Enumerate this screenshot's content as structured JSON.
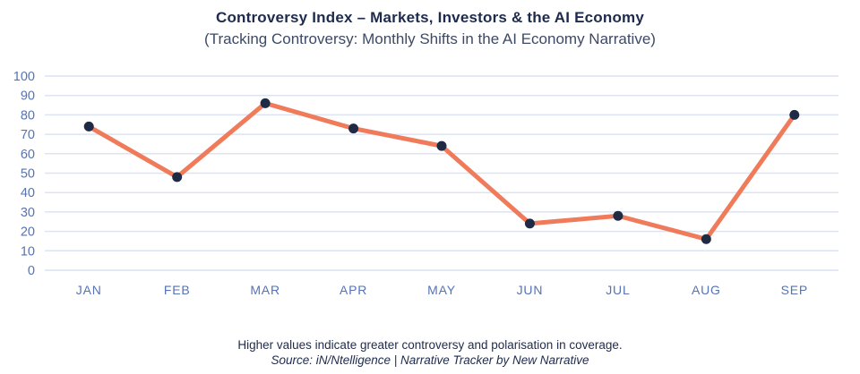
{
  "header": {
    "title": "Controversy Index – Markets, Investors & the AI Economy",
    "subtitle": "(Tracking Controversy: Monthly Shifts in the AI Economy Narrative)"
  },
  "footer": {
    "note": "Higher values indicate greater controversy and polarisation in coverage.",
    "source": "Source: iN/Ntelligence | Narrative Tracker by New Narrative"
  },
  "chart_data": {
    "type": "line",
    "title": "Controversy Index – Markets, Investors & the AI Economy",
    "subtitle": "(Tracking Controversy: Monthly Shifts in the AI Economy Narrative)",
    "categories": [
      "JAN",
      "FEB",
      "MAR",
      "APR",
      "MAY",
      "JUN",
      "JUL",
      "AUG",
      "SEP"
    ],
    "values": [
      74,
      48,
      86,
      73,
      64,
      24,
      28,
      16,
      80
    ],
    "series_name": "Controversy Index",
    "xlabel": "",
    "ylabel": "",
    "ylim": [
      0,
      100
    ],
    "yticks": [
      0,
      10,
      20,
      30,
      40,
      50,
      60,
      70,
      80,
      90,
      100
    ],
    "grid": "horizontal",
    "legend": "none",
    "colors": {
      "line": "#ef7b5b",
      "marker": "#1f2b45",
      "gridline": "#dce3f2",
      "axis_label": "#5673b4"
    }
  }
}
